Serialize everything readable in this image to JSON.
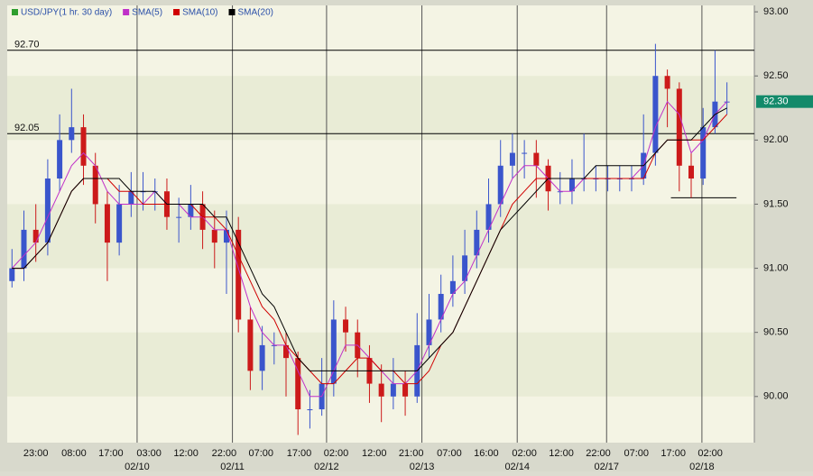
{
  "chart_data": {
    "type": "candlestick",
    "candles": {
      "name": "USD/JPY(1 hr. 30 day)",
      "legend_color": "#2e9e2e",
      "up_color": "#3a55cc",
      "down_color": "#cc1a1a",
      "open": [
        90.9,
        91.0,
        91.3,
        91.2,
        91.7,
        92.0,
        92.1,
        91.8,
        91.5,
        91.2,
        91.5,
        91.6,
        91.6,
        91.6,
        91.4,
        91.4,
        91.5,
        91.3,
        91.2,
        91.3,
        90.6,
        90.2,
        90.4,
        90.4,
        90.3,
        89.9,
        89.9,
        90.1,
        90.6,
        90.5,
        90.3,
        90.1,
        90.0,
        90.1,
        90.0,
        90.4,
        90.6,
        90.8,
        90.9,
        91.1,
        91.3,
        91.5,
        91.8,
        91.9,
        91.9,
        91.8,
        91.6,
        91.6,
        91.7,
        91.7,
        91.7,
        91.7,
        91.7,
        91.7,
        91.9,
        92.5,
        92.4,
        91.8,
        91.7,
        92.1,
        92.3
      ],
      "high": [
        91.15,
        91.45,
        91.5,
        91.85,
        92.2,
        92.4,
        92.2,
        91.9,
        91.6,
        91.65,
        91.75,
        91.75,
        91.7,
        91.7,
        91.55,
        91.65,
        91.6,
        91.45,
        91.45,
        91.4,
        90.7,
        90.55,
        90.5,
        90.5,
        90.35,
        90.05,
        90.3,
        90.75,
        90.7,
        90.6,
        90.4,
        90.25,
        90.3,
        90.2,
        90.65,
        90.8,
        90.95,
        91.1,
        91.3,
        91.45,
        91.7,
        92.0,
        92.05,
        92.0,
        92.0,
        91.85,
        91.75,
        91.85,
        92.05,
        91.8,
        91.8,
        91.8,
        91.8,
        92.2,
        92.75,
        92.55,
        92.45,
        91.9,
        92.25,
        92.7,
        92.45
      ],
      "low": [
        90.85,
        90.9,
        91.05,
        91.1,
        91.6,
        91.9,
        91.65,
        91.35,
        90.9,
        91.1,
        91.4,
        91.45,
        91.45,
        91.3,
        91.2,
        91.3,
        91.15,
        91.0,
        90.8,
        90.5,
        90.05,
        90.05,
        90.25,
        90.0,
        89.7,
        89.75,
        89.85,
        90.0,
        90.35,
        90.15,
        89.95,
        89.8,
        89.9,
        89.85,
        89.95,
        90.3,
        90.5,
        90.7,
        90.8,
        91.0,
        91.2,
        91.4,
        91.7,
        91.7,
        91.55,
        91.45,
        91.5,
        91.5,
        91.6,
        91.6,
        91.6,
        91.6,
        91.6,
        91.65,
        91.8,
        92.1,
        91.6,
        91.55,
        91.65,
        92.05,
        92.2
      ],
      "close": [
        91.0,
        91.3,
        91.2,
        91.7,
        92.0,
        92.1,
        91.8,
        91.5,
        91.2,
        91.5,
        91.6,
        91.6,
        91.6,
        91.4,
        91.4,
        91.5,
        91.3,
        91.2,
        91.3,
        90.6,
        90.2,
        90.4,
        90.4,
        90.3,
        89.9,
        89.9,
        90.1,
        90.6,
        90.5,
        90.3,
        90.1,
        90.0,
        90.1,
        90.0,
        90.4,
        90.6,
        90.8,
        90.9,
        91.1,
        91.3,
        91.5,
        91.8,
        91.9,
        91.9,
        91.8,
        91.6,
        91.6,
        91.7,
        91.7,
        91.7,
        91.7,
        91.7,
        91.7,
        91.9,
        92.5,
        92.4,
        91.8,
        91.7,
        92.1,
        92.3,
        92.3
      ]
    },
    "series": [
      {
        "name": "SMA(5)",
        "color": "#c030c8",
        "values": [
          91.0,
          91.1,
          91.2,
          91.4,
          91.6,
          91.8,
          91.9,
          91.8,
          91.6,
          91.5,
          91.5,
          91.5,
          91.6,
          91.5,
          91.5,
          91.4,
          91.4,
          91.3,
          91.3,
          91.0,
          90.7,
          90.5,
          90.4,
          90.4,
          90.2,
          90.0,
          90.0,
          90.2,
          90.4,
          90.4,
          90.3,
          90.2,
          90.1,
          90.1,
          90.2,
          90.4,
          90.6,
          90.8,
          90.9,
          91.1,
          91.3,
          91.5,
          91.7,
          91.8,
          91.8,
          91.7,
          91.6,
          91.6,
          91.7,
          91.7,
          91.7,
          91.7,
          91.7,
          91.8,
          92.1,
          92.3,
          92.2,
          91.9,
          92.0,
          92.2,
          92.3
        ]
      },
      {
        "name": "SMA(10)",
        "color": "#d00000",
        "values": [
          91.0,
          91.0,
          91.1,
          91.2,
          91.4,
          91.6,
          91.7,
          91.7,
          91.7,
          91.6,
          91.6,
          91.5,
          91.5,
          91.5,
          91.5,
          91.5,
          91.4,
          91.4,
          91.3,
          91.1,
          90.9,
          90.7,
          90.6,
          90.4,
          90.3,
          90.2,
          90.1,
          90.1,
          90.2,
          90.3,
          90.3,
          90.2,
          90.2,
          90.1,
          90.1,
          90.2,
          90.4,
          90.5,
          90.7,
          90.9,
          91.1,
          91.3,
          91.5,
          91.6,
          91.7,
          91.7,
          91.7,
          91.7,
          91.7,
          91.7,
          91.7,
          91.7,
          91.7,
          91.7,
          91.9,
          92.0,
          92.0,
          92.0,
          92.0,
          92.1,
          92.2
        ]
      },
      {
        "name": "SMA(20)",
        "color": "#000000",
        "values": [
          91.0,
          91.0,
          91.1,
          91.2,
          91.4,
          91.6,
          91.7,
          91.7,
          91.7,
          91.7,
          91.6,
          91.6,
          91.6,
          91.5,
          91.5,
          91.5,
          91.5,
          91.4,
          91.4,
          91.2,
          91.0,
          90.8,
          90.7,
          90.5,
          90.3,
          90.2,
          90.2,
          90.2,
          90.2,
          90.2,
          90.2,
          90.2,
          90.2,
          90.2,
          90.2,
          90.3,
          90.4,
          90.5,
          90.7,
          90.9,
          91.1,
          91.3,
          91.4,
          91.5,
          91.6,
          91.7,
          91.7,
          91.7,
          91.7,
          91.8,
          91.8,
          91.8,
          91.8,
          91.8,
          91.9,
          92.0,
          92.0,
          92.0,
          92.1,
          92.2,
          92.25
        ]
      }
    ],
    "xlim": [
      -0.4,
      62.3
    ],
    "ylim": [
      89.64,
      93.05
    ],
    "yticks": [
      {
        "value": 90,
        "label": "90.00"
      },
      {
        "value": 90.5,
        "label": "90.50"
      },
      {
        "value": 91,
        "label": "91.00"
      },
      {
        "value": 91.5,
        "label": "91.50"
      },
      {
        "value": 92,
        "label": "92.00"
      },
      {
        "value": 92.5,
        "label": "92.50"
      },
      {
        "value": 93,
        "label": "93.00"
      }
    ],
    "xticks": [
      {
        "value": 2.0,
        "label": "23:00"
      },
      {
        "value": 5.2,
        "label": "08:00"
      },
      {
        "value": 8.3,
        "label": "17:00"
      },
      {
        "value": 11.5,
        "label": "03:00"
      },
      {
        "value": 14.6,
        "label": "12:00"
      },
      {
        "value": 17.8,
        "label": "22:00"
      },
      {
        "value": 20.9,
        "label": "07:00"
      },
      {
        "value": 24.1,
        "label": "17:00"
      },
      {
        "value": 27.2,
        "label": "02:00"
      },
      {
        "value": 30.4,
        "label": "12:00"
      },
      {
        "value": 33.5,
        "label": "21:00"
      },
      {
        "value": 36.7,
        "label": "07:00"
      },
      {
        "value": 39.8,
        "label": "16:00"
      },
      {
        "value": 43.0,
        "label": "02:00"
      },
      {
        "value": 46.1,
        "label": "12:00"
      },
      {
        "value": 49.2,
        "label": "22:00"
      },
      {
        "value": 52.4,
        "label": "07:00"
      },
      {
        "value": 55.5,
        "label": "17:00"
      },
      {
        "value": 58.6,
        "label": "02:00"
      }
    ],
    "date_ticks": [
      {
        "value": 10.5,
        "label": "02/10"
      },
      {
        "value": 18.5,
        "label": "02/11"
      },
      {
        "value": 26.4,
        "label": "02/12"
      },
      {
        "value": 34.4,
        "label": "02/13"
      },
      {
        "value": 42.4,
        "label": "02/14"
      },
      {
        "value": 49.9,
        "label": "02/17"
      },
      {
        "value": 57.9,
        "label": "02/18"
      }
    ],
    "levels": [
      {
        "value": 92.7,
        "label": "92.70"
      },
      {
        "value": 92.05,
        "label": "92.05"
      }
    ],
    "support": {
      "value": 91.55,
      "from": 55.3,
      "to": 60.8
    },
    "last_price": {
      "value": 92.3,
      "label": "92.30",
      "color": "#138a6a"
    }
  }
}
